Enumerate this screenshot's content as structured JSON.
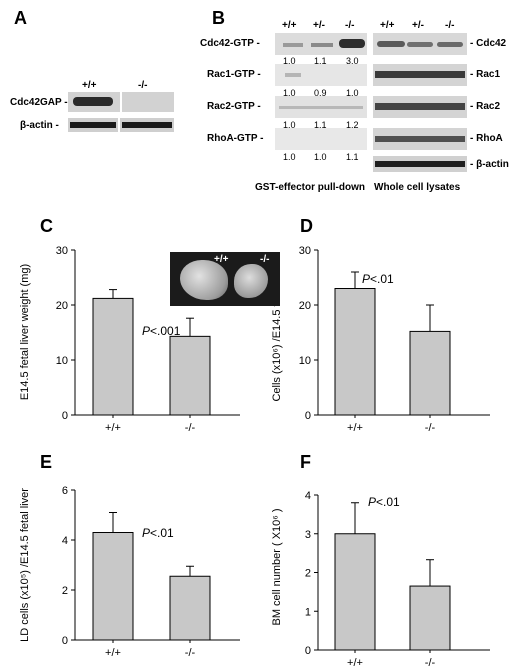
{
  "panel_a": {
    "label": "A",
    "genotypes": [
      "+/+",
      "-/-"
    ],
    "rows": [
      "Cdc42GAP -",
      "β-actin -"
    ]
  },
  "panel_b": {
    "label": "B",
    "genotypes_left": [
      "+/+",
      "+/-",
      "-/-"
    ],
    "genotypes_right": [
      "+/+",
      "+/-",
      "-/-"
    ],
    "left_rows": [
      {
        "name": "Cdc42-GTP -",
        "ratios": [
          "1.0",
          "1.1",
          "3.0"
        ]
      },
      {
        "name": "Rac1-GTP -",
        "ratios": [
          "1.0",
          "0.9",
          "1.0"
        ]
      },
      {
        "name": "Rac2-GTP -",
        "ratios": [
          "1.0",
          "1.1",
          "1.2"
        ]
      },
      {
        "name": "RhoA-GTP -",
        "ratios": [
          "1.0",
          "1.0",
          "1.1"
        ]
      }
    ],
    "right_rows": [
      "- Cdc42",
      "- Rac1",
      "- Rac2",
      "- RhoA",
      "- β-actin"
    ],
    "caption_left": "GST-effector pull-down",
    "caption_right": "Whole cell lysates"
  },
  "chart_data": [
    {
      "panel": "C",
      "type": "bar",
      "categories": [
        "+/+",
        "-/-"
      ],
      "values": [
        21.2,
        14.3
      ],
      "errors": [
        1.6,
        3.3
      ],
      "ylabel": "E14.5 fetal liver weight (mg)",
      "ylim": [
        0,
        30
      ],
      "yticks": [
        "0",
        "10",
        "20",
        "30"
      ],
      "annotation": "P<.001",
      "inset_labels": [
        "+/+",
        "-/-"
      ]
    },
    {
      "panel": "D",
      "type": "bar",
      "categories": [
        "+/+",
        "-/-"
      ],
      "values": [
        23,
        15.2
      ],
      "errors": [
        3,
        4.8
      ],
      "ylabel": "Cells (x10⁶) /E14.5 fetal liver",
      "ylim": [
        0,
        30
      ],
      "yticks": [
        "0",
        "10",
        "20",
        "30"
      ],
      "annotation": "P<.01"
    },
    {
      "panel": "E",
      "type": "bar",
      "categories": [
        "+/+",
        "-/-"
      ],
      "values": [
        4.3,
        2.55
      ],
      "errors": [
        0.8,
        0.4
      ],
      "ylabel": "LD cells (x10⁵) /E14.5 fetal liver",
      "ylim": [
        0,
        6
      ],
      "yticks": [
        "0",
        "2",
        "4",
        "6"
      ],
      "annotation": "P<.01"
    },
    {
      "panel": "F",
      "type": "bar",
      "categories": [
        "+/+",
        "-/-"
      ],
      "values": [
        3.0,
        1.65
      ],
      "errors": [
        0.8,
        0.68
      ],
      "ylabel": "BM cell number ( X10⁶ )",
      "ylim": [
        0,
        4
      ],
      "yticks": [
        "0",
        "1",
        "2",
        "3",
        "4"
      ],
      "annotation": "P<.01"
    }
  ]
}
